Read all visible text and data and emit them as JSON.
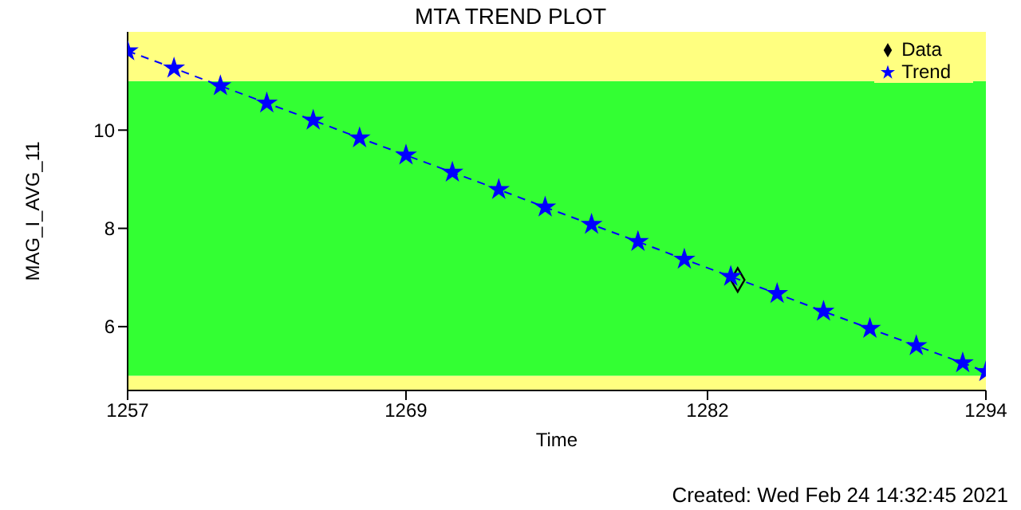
{
  "chart_data": {
    "type": "scatter",
    "title": "MTA TREND PLOT",
    "xlabel": "Time",
    "ylabel": "MAG_I_AVG_11",
    "xlim": [
      1257,
      1294
    ],
    "xticks": [
      1257,
      1269,
      1282,
      1294
    ],
    "ylim": [
      4.7,
      12
    ],
    "yticks": [
      6,
      8,
      10
    ],
    "grid": false,
    "legend": "top right",
    "bands": [
      {
        "axis": "y",
        "from": 4.7,
        "to": 5,
        "color": "#ffff80"
      },
      {
        "axis": "y",
        "from": 5,
        "to": 11,
        "color": "#33ff33"
      },
      {
        "axis": "y",
        "from": 11,
        "to": 12,
        "color": "#ffff80"
      }
    ],
    "series": [
      {
        "name": "Data",
        "marker": "diamond",
        "color": "#000000",
        "x": [
          1283.3
        ],
        "values": [
          6.95
        ]
      },
      {
        "name": "Trend",
        "type": "line",
        "marker": "star",
        "line_style": "dashed",
        "color": "#0000ff",
        "x": [
          1257,
          1259,
          1261,
          1263,
          1265,
          1267,
          1269,
          1271,
          1273,
          1275,
          1277,
          1279,
          1281,
          1283,
          1285,
          1287,
          1289,
          1291,
          1293,
          1294
        ],
        "values": [
          11.61,
          11.26,
          10.9,
          10.55,
          10.2,
          9.84,
          9.49,
          9.14,
          8.79,
          8.43,
          8.08,
          7.73,
          7.37,
          7.02,
          6.67,
          6.31,
          5.96,
          5.61,
          5.26,
          5.08
        ]
      }
    ],
    "annotations": [
      "Created: Wed Feb 24 14:32:45 2021"
    ]
  }
}
